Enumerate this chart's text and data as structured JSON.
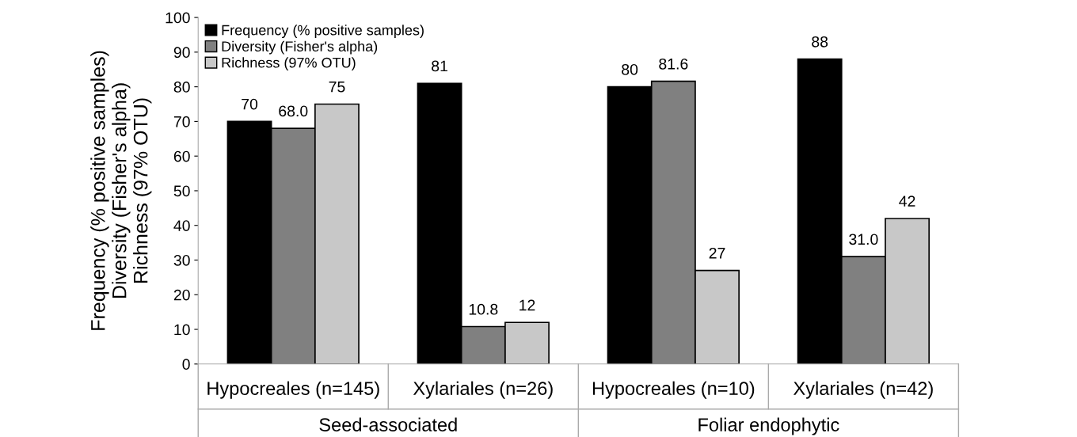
{
  "chart_data": {
    "type": "bar",
    "ylabel": "Frequency (% positive samples)\nDiversity (Fisher's alpha)\nRichness (97% OTU)",
    "categories": [
      "Hypocreales (n=145)",
      "Xylariales (n=26)",
      "Hypocreales (n=10)",
      "Xylariales (n=42)"
    ],
    "series": [
      {
        "name": "Frequency (% positive samples)",
        "color": "#000000",
        "values": [
          70,
          81,
          80,
          88
        ],
        "value_labels": [
          "70",
          "81",
          "80",
          "88"
        ]
      },
      {
        "name": "Diversity (Fisher's alpha)",
        "color": "#808080",
        "values": [
          68.0,
          10.8,
          81.6,
          31.0
        ],
        "value_labels": [
          "68.0",
          "10.8",
          "81.6",
          "31.0"
        ]
      },
      {
        "name": "Richness (97% OTU)",
        "color": "#c8c8c8",
        "values": [
          75,
          12,
          27,
          42
        ],
        "value_labels": [
          "75",
          "12",
          "27",
          "42"
        ]
      }
    ],
    "annotations": [
      "Seed-associated",
      "Foliar endophytic"
    ],
    "ylim": [
      0,
      100
    ],
    "yticks": [
      0,
      10,
      20,
      30,
      40,
      50,
      60,
      70,
      80,
      90,
      100
    ],
    "grid": false,
    "legend": "top left"
  }
}
